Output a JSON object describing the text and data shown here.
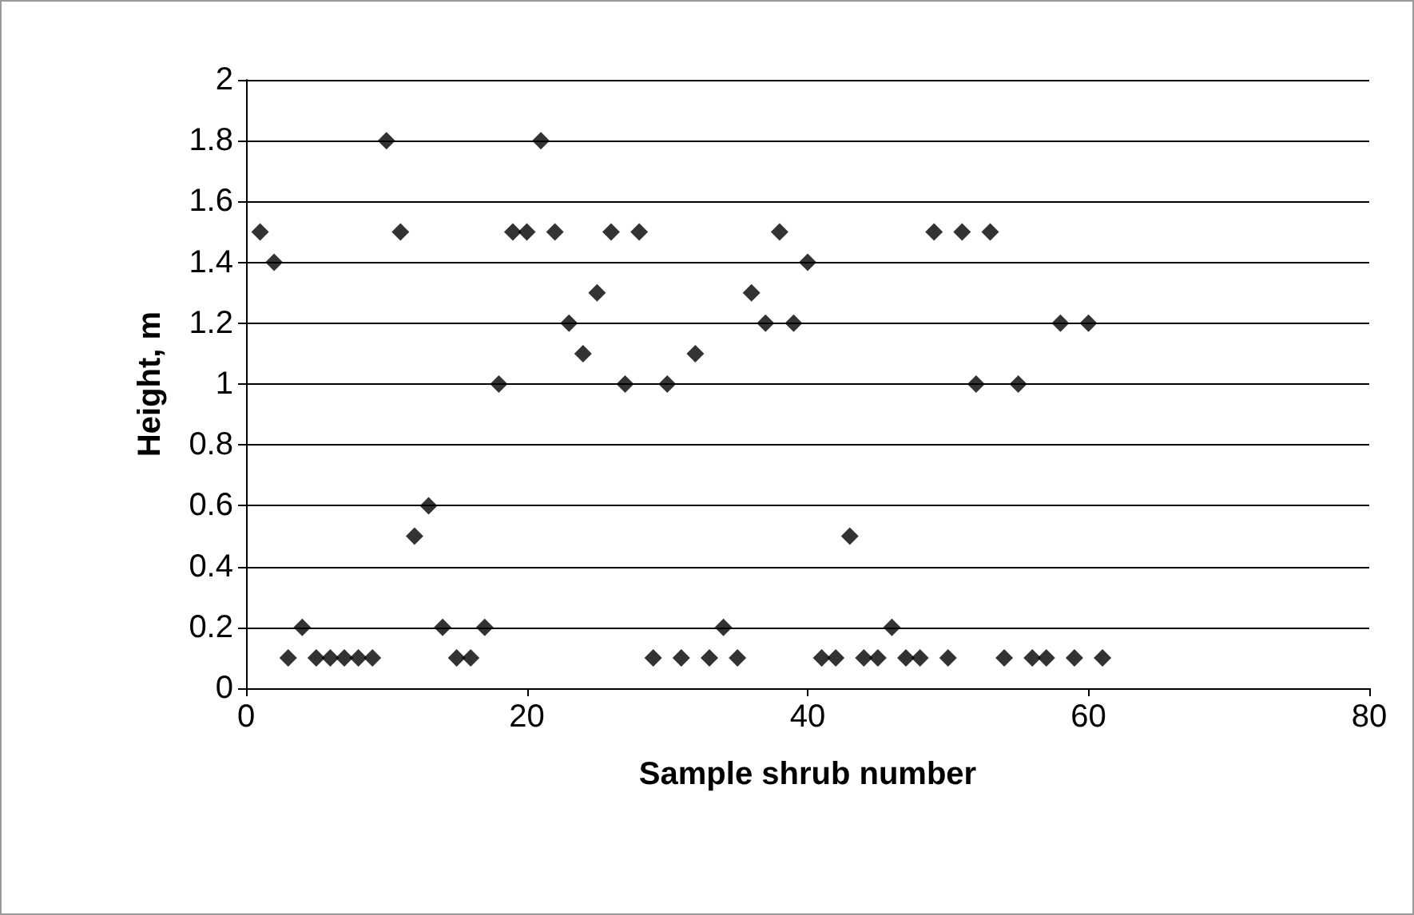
{
  "chart_data": {
    "type": "scatter",
    "xlabel": "Sample shrub number",
    "ylabel": "Height, m",
    "x": [
      1,
      2,
      3,
      4,
      5,
      6,
      7,
      8,
      9,
      10,
      11,
      12,
      13,
      14,
      15,
      16,
      17,
      18,
      19,
      20,
      21,
      22,
      23,
      24,
      25,
      26,
      27,
      28,
      29,
      30,
      31,
      32,
      33,
      34,
      35,
      36,
      37,
      38,
      39,
      40,
      41,
      42,
      43,
      44,
      45,
      46,
      47,
      48,
      49,
      50,
      51,
      52,
      53,
      54,
      55,
      56,
      57,
      58,
      59,
      60,
      61
    ],
    "series": [
      {
        "color": "#000000",
        "values": [
          1.5,
          1.4,
          0.1,
          0.2,
          0.1,
          0.1,
          0.1,
          0.1,
          0.1,
          1.8,
          1.5,
          0.5,
          0.6,
          0.2,
          0.1,
          0.1,
          0.2,
          1.0,
          1.5,
          1.5,
          1.8,
          1.5,
          1.2,
          1.1,
          1.3,
          1.5,
          1.0,
          1.5,
          0.1,
          1.0,
          0.1,
          1.1,
          0.1,
          0.2,
          0.1,
          1.3,
          1.2,
          1.5,
          1.2,
          1.4,
          0.1,
          0.1,
          0.5,
          0.1,
          0.1,
          0.2,
          0.1,
          0.1,
          1.5,
          0.1,
          1.5,
          1.0,
          1.5,
          0.1,
          1.0,
          0.1,
          0.1,
          1.2,
          0.1,
          1.2,
          0.1
        ]
      }
    ],
    "xlim": [
      0,
      80
    ],
    "xticks": [
      0,
      20,
      40,
      60,
      80
    ],
    "ylim": [
      0,
      2
    ],
    "yticks": [
      0,
      0.2,
      0.4,
      0.6,
      0.8,
      1,
      1.2,
      1.4,
      1.6,
      1.8,
      2
    ],
    "grid": "y",
    "marker": "diamond"
  }
}
